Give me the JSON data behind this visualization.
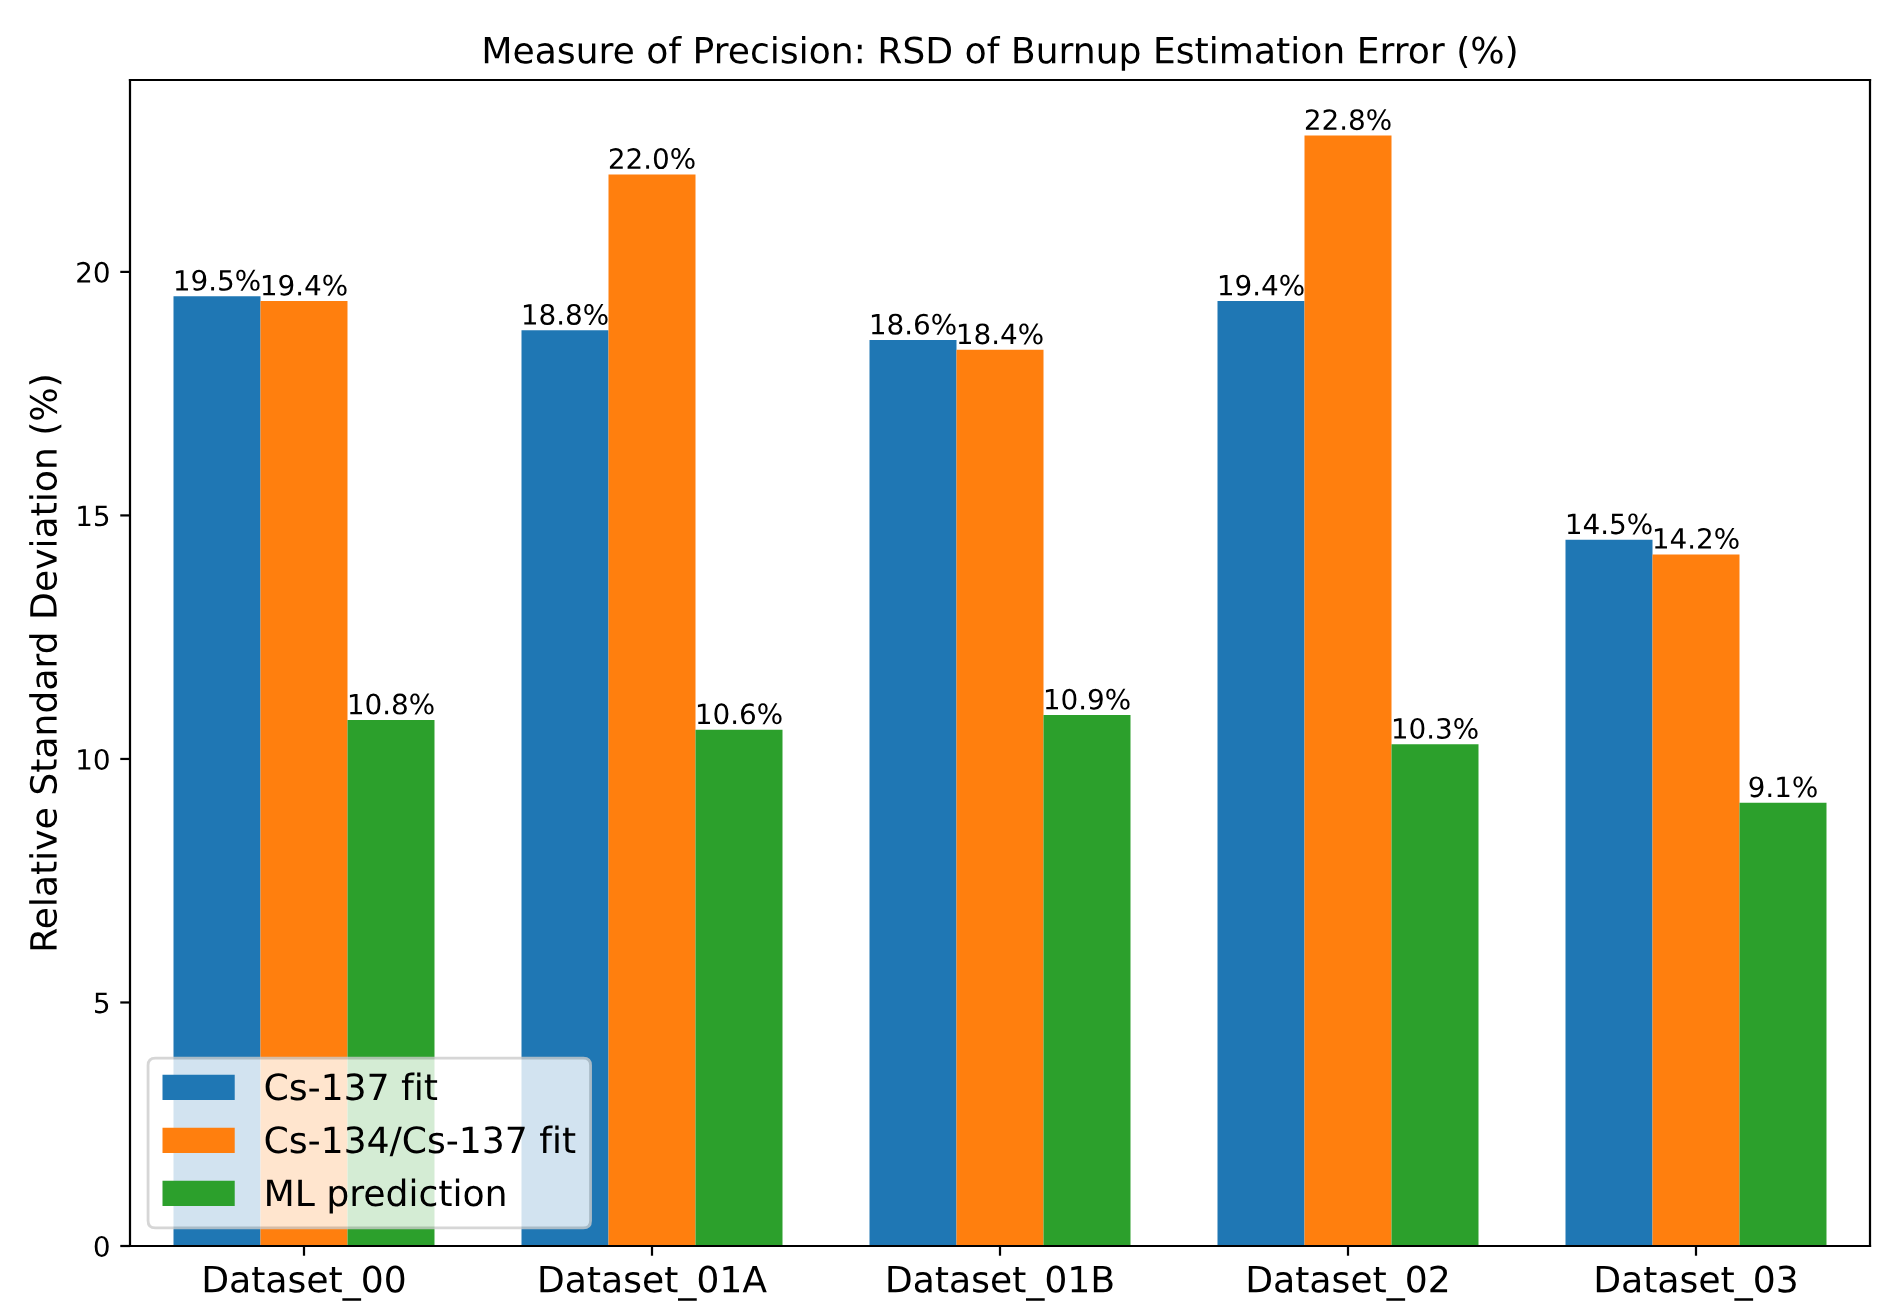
{
  "chart_data": {
    "type": "bar",
    "title": "Measure of Precision: RSD of Burnup Estimation Error (%)",
    "ylabel": "Relative Standard Deviation (%)",
    "categories": [
      "Dataset_00",
      "Dataset_01A",
      "Dataset_01B",
      "Dataset_02",
      "Dataset_03"
    ],
    "series": [
      {
        "name": "Cs-137 fit",
        "color": "#1f77b4",
        "values": [
          19.5,
          18.8,
          18.6,
          19.4,
          14.5
        ],
        "value_labels": [
          "19.5%",
          "18.8%",
          "18.6%",
          "19.4%",
          "14.5%"
        ]
      },
      {
        "name": "Cs-134/Cs-137 fit",
        "color": "#ff7f0e",
        "values": [
          19.4,
          22.0,
          18.4,
          22.8,
          14.2
        ],
        "value_labels": [
          "19.4%",
          "22.0%",
          "18.4%",
          "22.8%",
          "14.2%"
        ]
      },
      {
        "name": "ML prediction",
        "color": "#2ca02c",
        "values": [
          10.8,
          10.6,
          10.9,
          10.3,
          9.1
        ],
        "value_labels": [
          "10.8%",
          "10.6%",
          "10.9%",
          "10.3%",
          "9.1%"
        ]
      }
    ],
    "ylim": [
      0,
      23.94
    ],
    "yticks": [
      0,
      5,
      10,
      15,
      20
    ],
    "legend": "bottom left",
    "grid": false
  }
}
